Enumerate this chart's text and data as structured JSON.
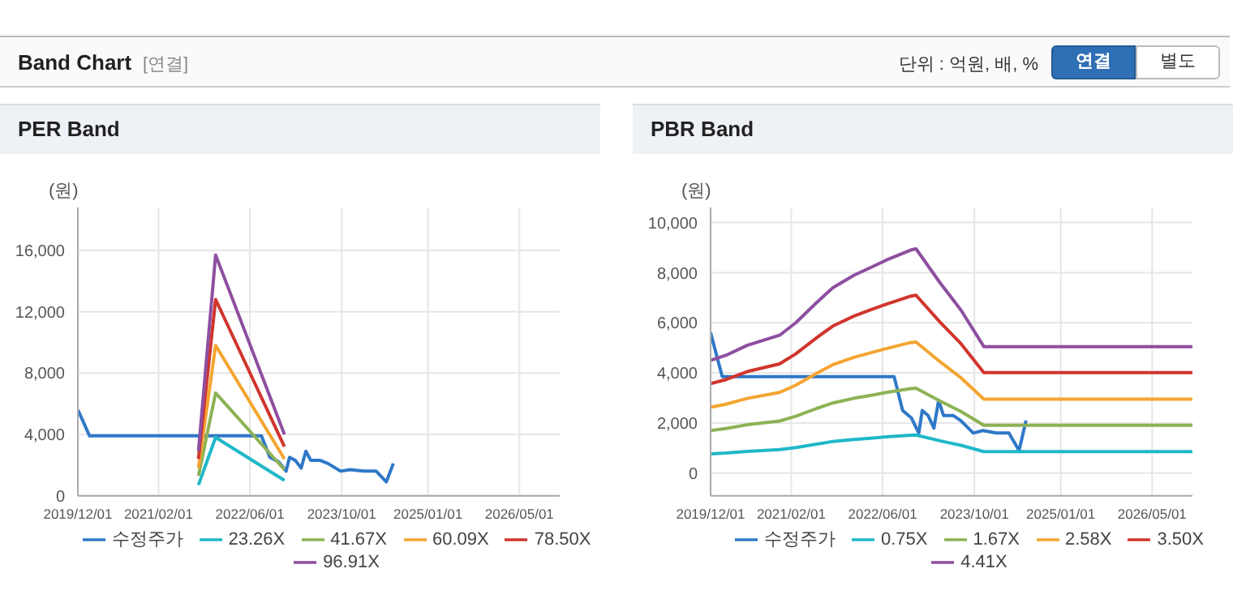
{
  "chart_data": [
    {
      "type": "line",
      "title": "PER Band",
      "ylabel": "(원)",
      "annotations": [
        "Band Chart",
        "[연결]",
        "단위 : 억원, 배, %",
        "연결",
        "별도"
      ],
      "x": [
        "2021-09-01",
        "2021-12-01",
        "2022-12-01"
      ],
      "xlim": [
        "2019-12-01",
        "2026-12-01"
      ],
      "xticks": [
        {
          "value": "2019-12-01",
          "label": "2019/12/01"
        },
        {
          "value": "2021-02-01",
          "label": "2021/02/01"
        },
        {
          "value": "2022-06-01",
          "label": "2022/06/01"
        },
        {
          "value": "2023-10-01",
          "label": "2023/10/01"
        },
        {
          "value": "2025-01-01",
          "label": "2025/01/01"
        },
        {
          "value": "2026-05-01",
          "label": "2026/05/01"
        }
      ],
      "ylim": [
        0,
        18800
      ],
      "yticks": [
        {
          "value": 0,
          "label": "0"
        },
        {
          "value": 4000,
          "label": "4,000"
        },
        {
          "value": 8000,
          "label": "8,000"
        },
        {
          "value": 12000,
          "label": "12,000"
        },
        {
          "value": 16000,
          "label": "16,000"
        }
      ],
      "grid": true,
      "legend": "bottom",
      "series": [
        {
          "name": "수정주가",
          "color": "#2f78c8",
          "x": [
            "2019-12-01",
            "2020-02-01",
            "2022-08-01",
            "2022-09-15",
            "2022-11-01",
            "2022-12-10",
            "2022-12-28",
            "2023-01-28",
            "2023-02-28",
            "2023-03-25",
            "2023-04-20",
            "2023-06-10",
            "2023-07-20",
            "2023-09-25",
            "2023-11-15",
            "2024-01-25",
            "2024-04-01",
            "2024-05-25",
            "2024-07-01"
          ],
          "values": [
            5600,
            3900,
            3900,
            2500,
            2200,
            1600,
            2500,
            2300,
            1800,
            2900,
            2300,
            2300,
            2100,
            1600,
            1700,
            1600,
            1600,
            900,
            2100
          ]
        },
        {
          "name": "23.26X",
          "color": "#1fb8c9",
          "values": [
            700,
            3800,
            1000
          ]
        },
        {
          "name": "41.67X",
          "color": "#8db255",
          "values": [
            1300,
            6700,
            1700
          ]
        },
        {
          "name": "60.09X",
          "color": "#f4a531",
          "values": [
            1800,
            9800,
            2400
          ]
        },
        {
          "name": "78.50X",
          "color": "#d0352d",
          "values": [
            2400,
            12800,
            3200
          ]
        },
        {
          "name": "96.91X",
          "color": "#8e4fa0",
          "values": [
            2900,
            15700,
            4000
          ]
        }
      ]
    },
    {
      "type": "line",
      "title": "PBR Band",
      "ylabel": "(원)",
      "x": [
        "2019-12-01",
        "2020-02-20",
        "2020-06-12",
        "2020-12-01",
        "2021-02-25",
        "2021-06-15",
        "2021-09-10",
        "2022-01-01",
        "2022-03-28",
        "2022-06-20",
        "2022-10-28",
        "2022-11-25",
        "2023-04-01",
        "2023-07-22",
        "2023-11-20",
        "2026-12-01"
      ],
      "xlim": [
        "2019-12-01",
        "2026-12-01"
      ],
      "xticks": [
        {
          "value": "2019-12-01",
          "label": "2019/12/01"
        },
        {
          "value": "2021-02-01",
          "label": "2021/02/01"
        },
        {
          "value": "2022-06-01",
          "label": "2022/06/01"
        },
        {
          "value": "2023-10-01",
          "label": "2023/10/01"
        },
        {
          "value": "2025-01-01",
          "label": "2025/01/01"
        },
        {
          "value": "2026-05-01",
          "label": "2026/05/01"
        }
      ],
      "ylim": [
        -900,
        10600
      ],
      "yticks": [
        {
          "value": 0,
          "label": "0"
        },
        {
          "value": 2000,
          "label": "2,000"
        },
        {
          "value": 4000,
          "label": "4,000"
        },
        {
          "value": 6000,
          "label": "6,000"
        },
        {
          "value": 8000,
          "label": "8,000"
        },
        {
          "value": 10000,
          "label": "10,000"
        }
      ],
      "grid": true,
      "legend": "bottom",
      "series": [
        {
          "name": "수정주가",
          "color": "#2f78c8",
          "x": [
            "2019-12-01",
            "2020-02-01",
            "2022-08-01",
            "2022-09-15",
            "2022-11-01",
            "2022-12-10",
            "2022-12-28",
            "2023-01-28",
            "2023-02-28",
            "2023-03-25",
            "2023-04-20",
            "2023-06-10",
            "2023-07-20",
            "2023-09-25",
            "2023-11-15",
            "2024-01-25",
            "2024-04-01",
            "2024-05-25",
            "2024-07-01"
          ],
          "values": [
            5600,
            3850,
            3850,
            2500,
            2200,
            1600,
            2500,
            2300,
            1800,
            2900,
            2300,
            2300,
            2100,
            1600,
            1700,
            1600,
            1600,
            900,
            2100
          ]
        },
        {
          "name": "0.75X",
          "color": "#1fb8c9",
          "values": [
            770,
            800,
            870,
            940,
            1020,
            1160,
            1260,
            1340,
            1390,
            1450,
            1510,
            1520,
            1290,
            1110,
            860,
            860
          ]
        },
        {
          "name": "1.67X",
          "color": "#8db255",
          "values": [
            1700,
            1780,
            1930,
            2080,
            2270,
            2580,
            2800,
            2990,
            3100,
            3220,
            3370,
            3390,
            2880,
            2460,
            1910,
            1910
          ]
        },
        {
          "name": "2.58X",
          "color": "#f4a531",
          "values": [
            2630,
            2750,
            2980,
            3220,
            3510,
            3980,
            4330,
            4620,
            4800,
            4970,
            5210,
            5230,
            4450,
            3800,
            2950,
            2950
          ]
        },
        {
          "name": "3.50X",
          "color": "#d0352d",
          "values": [
            3570,
            3730,
            4050,
            4360,
            4760,
            5400,
            5870,
            6270,
            6510,
            6740,
            7060,
            7100,
            6030,
            5160,
            4010,
            4010
          ]
        },
        {
          "name": "4.41X",
          "color": "#8e4fa0",
          "values": [
            4500,
            4700,
            5100,
            5500,
            6000,
            6800,
            7400,
            7900,
            8200,
            8500,
            8900,
            8950,
            7600,
            6500,
            5050,
            5050
          ]
        }
      ]
    }
  ]
}
